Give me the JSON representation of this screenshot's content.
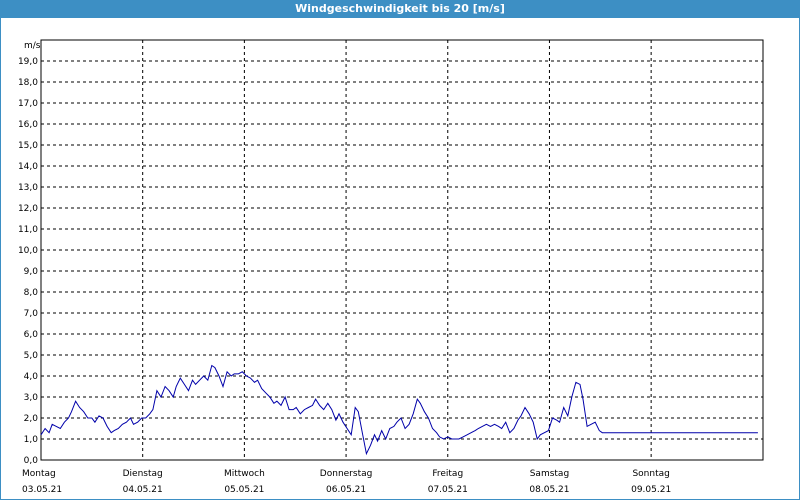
{
  "window": {
    "title": "Windgeschwindigkeit bis 20 [m/s]"
  },
  "colors": {
    "titlebar": "#3d8fc4",
    "line": "#0000aa",
    "grid": "#000000",
    "background": "#ffffff"
  },
  "chart_data": {
    "type": "line",
    "title": "Windgeschwindigkeit bis 20 [m/s]",
    "ylabel": "m/s",
    "ylim": [
      0,
      20
    ],
    "yticks": [
      "0,0",
      "1,0",
      "2,0",
      "3,0",
      "4,0",
      "5,0",
      "6,0",
      "7,0",
      "8,0",
      "9,0",
      "10,0",
      "11,0",
      "12,0",
      "13,0",
      "14,0",
      "15,0",
      "16,0",
      "17,0",
      "18,0",
      "19,0"
    ],
    "xlim": [
      0,
      7.1
    ],
    "x_labels": [
      {
        "day": "Montag",
        "date": "03.05.21"
      },
      {
        "day": "Dienstag",
        "date": "04.05.21"
      },
      {
        "day": "Mittwoch",
        "date": "05.05.21"
      },
      {
        "day": "Donnerstag",
        "date": "06.05.21"
      },
      {
        "day": "Freitag",
        "date": "07.05.21"
      },
      {
        "day": "Samstag",
        "date": "08.05.21"
      },
      {
        "day": "Sonntag",
        "date": "09.05.21"
      }
    ],
    "grid": true,
    "series": [
      {
        "x": [
          0.0,
          0.04,
          0.08,
          0.11,
          0.15,
          0.19,
          0.23,
          0.27,
          0.3,
          0.34,
          0.38,
          0.42,
          0.46,
          0.5,
          0.53,
          0.57,
          0.61,
          0.65,
          0.69,
          0.72,
          0.76,
          0.8,
          0.84,
          0.88,
          0.91,
          0.95,
          0.99,
          1.03,
          1.07,
          1.1,
          1.14,
          1.18,
          1.22,
          1.26,
          1.3,
          1.33,
          1.37,
          1.41,
          1.45,
          1.49,
          1.52,
          1.56,
          1.6,
          1.64,
          1.68,
          1.71,
          1.75,
          1.79,
          1.83,
          1.87,
          1.9,
          1.94,
          1.98,
          2.02,
          2.06,
          2.1,
          2.13,
          2.17,
          2.21,
          2.25,
          2.29,
          2.32,
          2.36,
          2.4,
          2.44,
          2.48,
          2.51,
          2.55,
          2.59,
          2.63,
          2.67,
          2.7,
          2.74,
          2.78,
          2.82,
          2.86,
          2.9,
          2.93,
          2.97,
          3.01,
          3.05,
          3.09,
          3.12,
          3.16,
          3.2,
          3.24,
          3.28,
          3.31,
          3.35,
          3.39,
          3.43,
          3.47,
          3.5,
          3.54,
          3.58,
          3.62,
          3.66,
          3.7,
          3.73,
          3.77,
          3.81,
          3.85,
          3.89,
          3.92,
          3.96,
          4.0,
          4.04,
          4.08,
          4.11,
          4.15,
          4.19,
          4.23,
          4.27,
          4.3,
          4.34,
          4.38,
          4.42,
          4.46,
          4.5,
          4.53,
          4.57,
          4.61,
          4.65,
          4.69,
          4.72,
          4.76,
          4.8,
          4.84,
          4.88,
          4.91,
          4.95,
          4.99,
          5.03,
          5.07,
          5.1,
          5.14,
          5.18,
          5.22,
          5.26,
          5.3,
          5.33,
          5.37,
          5.41,
          5.45,
          5.49,
          5.52,
          5.56,
          5.6,
          5.64,
          5.68,
          5.71,
          5.75,
          5.79,
          5.83,
          5.87,
          5.9,
          5.94,
          5.98,
          6.02,
          6.06,
          6.1,
          6.13,
          6.17,
          6.21,
          6.25,
          6.29,
          6.32,
          6.36,
          6.4,
          6.44,
          6.48,
          6.51,
          6.55,
          6.59,
          6.63,
          6.67,
          6.7,
          6.74,
          6.78,
          6.82,
          6.86,
          6.9,
          6.93,
          6.97,
          7.01,
          7.05
        ],
        "y": [
          1.2,
          1.5,
          1.3,
          1.7,
          1.6,
          1.5,
          1.8,
          2.0,
          2.3,
          2.8,
          2.5,
          2.3,
          2.0,
          2.0,
          1.8,
          2.1,
          2.0,
          1.6,
          1.3,
          1.4,
          1.5,
          1.7,
          1.8,
          2.0,
          1.7,
          1.8,
          2.0,
          2.0,
          2.2,
          2.4,
          3.3,
          3.0,
          3.5,
          3.3,
          3.0,
          3.5,
          3.9,
          3.6,
          3.3,
          3.8,
          3.6,
          3.8,
          4.0,
          3.8,
          4.5,
          4.4,
          4.0,
          3.5,
          4.2,
          4.0,
          4.1,
          4.1,
          4.2,
          4.0,
          3.9,
          3.7,
          3.8,
          3.4,
          3.2,
          3.0,
          2.7,
          2.8,
          2.6,
          3.0,
          2.4,
          2.4,
          2.5,
          2.2,
          2.4,
          2.5,
          2.6,
          2.9,
          2.6,
          2.4,
          2.7,
          2.4,
          1.9,
          2.2,
          1.8,
          1.5,
          1.2,
          2.5,
          2.3,
          1.3,
          0.3,
          0.7,
          1.2,
          0.9,
          1.4,
          1.0,
          1.5,
          1.6,
          1.8,
          2.0,
          1.5,
          1.7,
          2.2,
          2.9,
          2.7,
          2.3,
          2.0,
          1.5,
          1.3,
          1.1,
          1.0,
          1.1,
          1.0,
          1.0,
          1.0,
          1.1,
          1.2,
          1.3,
          1.4,
          1.5,
          1.6,
          1.7,
          1.6,
          1.7,
          1.6,
          1.5,
          1.8,
          1.3,
          1.5,
          1.9,
          2.1,
          2.5,
          2.2,
          1.8,
          1.0,
          1.2,
          1.3,
          1.4,
          2.0,
          1.9,
          1.8,
          2.5,
          2.1,
          3.0,
          3.7,
          3.6,
          2.9,
          1.6,
          1.7,
          1.8,
          1.4,
          1.3,
          1.3,
          1.3,
          1.3,
          1.3,
          1.3,
          1.3,
          1.3,
          1.3,
          1.3,
          1.3,
          1.3,
          1.3,
          1.3,
          1.3,
          1.3,
          1.3,
          1.3,
          1.3,
          1.3,
          1.3,
          1.3,
          1.3,
          1.3,
          1.3,
          1.3,
          1.3,
          1.3,
          1.3,
          1.3,
          1.3,
          1.3,
          1.3,
          1.3,
          1.3,
          1.3,
          1.3,
          1.3,
          1.3,
          1.3,
          1.3
        ]
      }
    ]
  }
}
